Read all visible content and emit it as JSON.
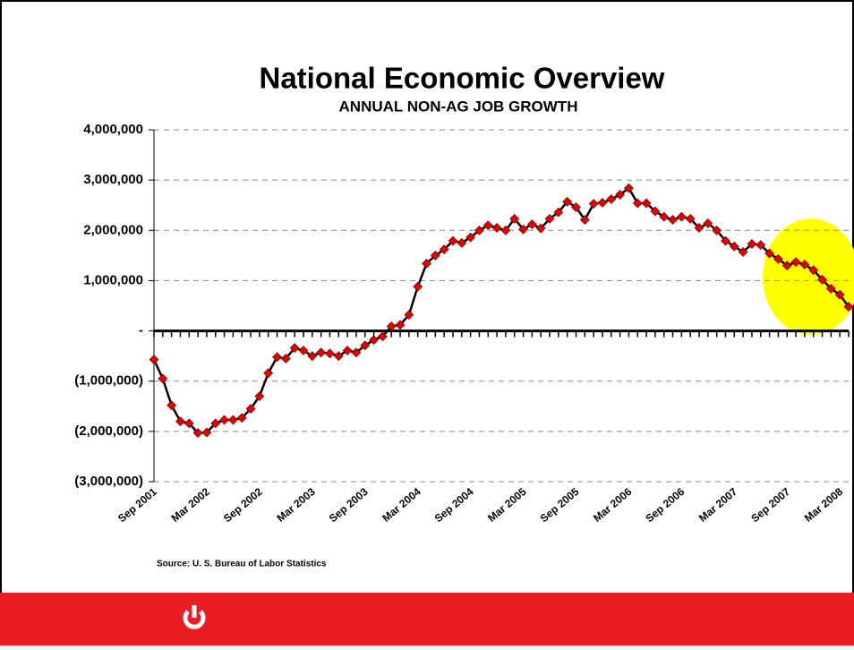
{
  "chart_data": {
    "type": "line",
    "title": "National Economic Overview",
    "subtitle": "ANNUAL NON-AG JOB GROWTH",
    "source": "Source: U. S. Bureau of Labor Statistics",
    "categories": [
      "Sep 2001",
      null,
      null,
      null,
      null,
      null,
      "Mar 2002",
      null,
      null,
      null,
      null,
      null,
      "Sep 2002",
      null,
      null,
      null,
      null,
      null,
      "Mar 2003",
      null,
      null,
      null,
      null,
      null,
      "Sep 2003",
      null,
      null,
      null,
      null,
      null,
      "Mar 2004",
      null,
      null,
      null,
      null,
      null,
      "Sep 2004",
      null,
      null,
      null,
      null,
      null,
      "Mar 2005",
      null,
      null,
      null,
      null,
      null,
      "Sep 2005",
      null,
      null,
      null,
      null,
      null,
      "Mar 2006",
      null,
      null,
      null,
      null,
      null,
      "Sep 2006",
      null,
      null,
      null,
      null,
      null,
      "Mar 2007",
      null,
      null,
      null,
      null,
      null,
      "Sep 2007",
      null,
      null,
      null,
      null,
      null,
      "Mar 2008",
      null
    ],
    "series": [
      {
        "name": "Annual non-ag job growth",
        "color": "#000000",
        "marker_color": "#e00000",
        "values": [
          -570000,
          -950000,
          -1480000,
          -1800000,
          -1840000,
          -2030000,
          -2020000,
          -1840000,
          -1770000,
          -1770000,
          -1730000,
          -1550000,
          -1300000,
          -840000,
          -520000,
          -550000,
          -340000,
          -390000,
          -500000,
          -430000,
          -450000,
          -500000,
          -390000,
          -430000,
          -290000,
          -180000,
          -110000,
          90000,
          120000,
          320000,
          880000,
          1340000,
          1500000,
          1620000,
          1790000,
          1750000,
          1860000,
          2000000,
          2100000,
          2050000,
          2000000,
          2230000,
          2020000,
          2120000,
          2040000,
          2230000,
          2360000,
          2570000,
          2460000,
          2210000,
          2530000,
          2550000,
          2620000,
          2710000,
          2840000,
          2540000,
          2540000,
          2380000,
          2270000,
          2210000,
          2270000,
          2230000,
          2050000,
          2140000,
          2000000,
          1790000,
          1680000,
          1570000,
          1730000,
          1710000,
          1540000,
          1430000,
          1300000,
          1370000,
          1320000,
          1210000,
          1020000,
          840000,
          720000,
          480000
        ]
      }
    ],
    "ylim": [
      -3000000,
      4000000
    ],
    "yticks": [
      {
        "value": -3000000,
        "label": "(3,000,000)"
      },
      {
        "value": -2000000,
        "label": "(2,000,000)"
      },
      {
        "value": -1000000,
        "label": "(1,000,000)"
      },
      {
        "value": 0,
        "label": "-"
      },
      {
        "value": 1000000,
        "label": "1,000,000"
      },
      {
        "value": 2000000,
        "label": "2,000,000"
      },
      {
        "value": 3000000,
        "label": "3,000,000"
      },
      {
        "value": 4000000,
        "label": "4,000,000"
      }
    ],
    "grid": true
  }
}
